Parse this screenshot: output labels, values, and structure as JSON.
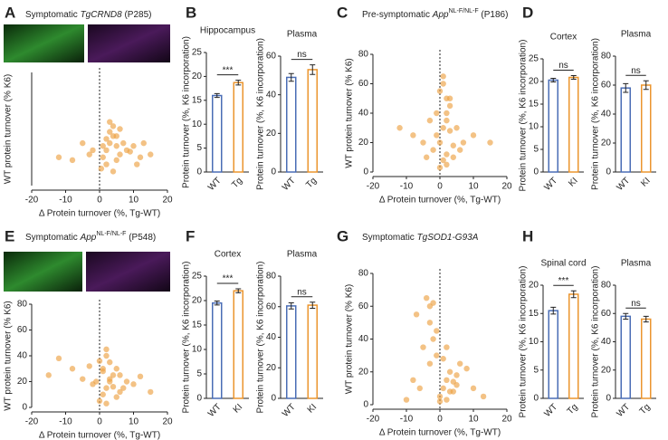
{
  "chart_data": [
    {
      "type": "scatter",
      "panel": "A",
      "title": [
        {
          "text": "Symptomatic "
        },
        {
          "text": "TgCRND8",
          "style": "italic"
        },
        {
          "text": " (P285)"
        }
      ],
      "xlabel": "Δ Protein turnover (%, Tg-WT)",
      "ylabel": "WT protein turnover (% K6)",
      "color": "#eda144",
      "reference_x": 0,
      "xlim": [
        -20,
        20
      ],
      "xticks": [
        -20,
        -10,
        0,
        10,
        20
      ],
      "ylim": [
        0,
        80
      ],
      "x": [
        1,
        2,
        3,
        4,
        5,
        6,
        2,
        3,
        4,
        5,
        7,
        8,
        10,
        12,
        15,
        -2,
        -5,
        -8,
        -12,
        0.5,
        3,
        6,
        9,
        4,
        2,
        1,
        5,
        11,
        13,
        -3
      ],
      "y": [
        20,
        25,
        30,
        35,
        28,
        22,
        15,
        38,
        42,
        18,
        30,
        25,
        28,
        20,
        22,
        25,
        30,
        18,
        20,
        12,
        45,
        40,
        24,
        10,
        33,
        28,
        35,
        15,
        30,
        22
      ]
    },
    {
      "type": "bar",
      "panel": "B",
      "title": "Hippocampus",
      "ylabel": "Protein turnover (%, K6 incorporation)",
      "categories": [
        "WT",
        "Tg"
      ],
      "values": [
        16,
        18.7
      ],
      "errors": [
        0.4,
        0.5
      ],
      "colors": [
        "#4a6db5",
        "#eb952e"
      ],
      "significance": "***",
      "ylim": [
        0,
        25
      ],
      "yticks": [
        0,
        5,
        10,
        15,
        20,
        25
      ]
    },
    {
      "type": "bar",
      "title": "Plasma",
      "ylabel": "Protein turnover (%, K6 incorporation)",
      "categories": [
        "WT",
        "Tg"
      ],
      "values": [
        49,
        53
      ],
      "errors": [
        2,
        2.5
      ],
      "colors": [
        "#4a6db5",
        "#eb952e"
      ],
      "significance": "ns",
      "ylim": [
        0,
        60
      ],
      "yticks": [
        0,
        20,
        40,
        60
      ]
    },
    {
      "type": "scatter",
      "panel": "C",
      "title": [
        {
          "text": "Pre-symptomatic "
        },
        {
          "text": "App",
          "style": "italic"
        },
        {
          "text": "NL-F/NL-F",
          "style": "sup"
        },
        {
          "text": " (P186)"
        }
      ],
      "xlabel": "Δ Protein turnover (%, Tg-WT)",
      "ylabel": "WT protein turnover (% K6)",
      "color": "#eda144",
      "reference_x": 0,
      "xlim": [
        -20,
        20
      ],
      "xticks": [
        -20,
        -10,
        0,
        10,
        20
      ],
      "ylim": [
        0,
        80
      ],
      "yticks": [
        0,
        20,
        40,
        60,
        80
      ],
      "x": [
        0,
        1,
        2,
        3,
        4,
        -1,
        -2,
        -3,
        -5,
        -8,
        -12,
        1,
        2,
        3,
        5,
        7,
        10,
        0,
        1,
        2,
        -1,
        4,
        6,
        -4,
        2,
        3,
        15,
        1,
        0,
        2
      ],
      "y": [
        20,
        30,
        40,
        50,
        10,
        25,
        15,
        35,
        20,
        25,
        30,
        60,
        5,
        45,
        30,
        20,
        25,
        55,
        65,
        12,
        40,
        18,
        15,
        10,
        35,
        28,
        20,
        8,
        3,
        50
      ]
    },
    {
      "type": "bar",
      "panel": "D",
      "title": "Cortex",
      "ylabel": "Protein turnover (%, K6 incorporation)",
      "categories": [
        "WT",
        "KI"
      ],
      "values": [
        20.3,
        20.9
      ],
      "errors": [
        0.4,
        0.4
      ],
      "colors": [
        "#4a6db5",
        "#eb952e"
      ],
      "significance": "ns",
      "ylim": [
        0,
        25
      ],
      "yticks": [
        0,
        5,
        10,
        15,
        20,
        25
      ]
    },
    {
      "type": "bar",
      "title": "Plasma",
      "ylabel": "Protein turnover (%, K6 incorporation)",
      "categories": [
        "WT",
        "KI"
      ],
      "values": [
        58,
        60
      ],
      "errors": [
        3,
        3
      ],
      "colors": [
        "#4a6db5",
        "#eb952e"
      ],
      "significance": "ns",
      "ylim": [
        0,
        80
      ],
      "yticks": [
        0,
        20,
        40,
        60,
        80
      ]
    },
    {
      "type": "scatter",
      "panel": "E",
      "title": [
        {
          "text": "Symptomatic "
        },
        {
          "text": "App",
          "style": "italic"
        },
        {
          "text": "NL-F/NL-F",
          "style": "sup"
        },
        {
          "text": " (P548)"
        }
      ],
      "xlabel": "Δ Protein turnover (%, Tg-WT)",
      "ylabel": "WT protein turnover (% K6)",
      "color": "#eda144",
      "reference_x": 0,
      "xlim": [
        -20,
        20
      ],
      "xticks": [
        -20,
        -10,
        0,
        10,
        20
      ],
      "ylim": [
        0,
        80
      ],
      "yticks": [
        0,
        20,
        40,
        60,
        80
      ],
      "x": [
        1,
        2,
        3,
        4,
        5,
        6,
        -2,
        -5,
        -8,
        -12,
        -15,
        2,
        3,
        8,
        10,
        15,
        0,
        1,
        4,
        -3,
        5,
        2,
        3,
        7,
        -1,
        1,
        2,
        6,
        12,
        0
      ],
      "y": [
        10,
        15,
        20,
        25,
        30,
        12,
        18,
        22,
        30,
        38,
        25,
        40,
        35,
        20,
        18,
        12,
        5,
        28,
        16,
        32,
        8,
        45,
        22,
        15,
        20,
        30,
        3,
        25,
        24,
        36
      ]
    },
    {
      "type": "bar",
      "panel": "F",
      "title": "Cortex",
      "ylabel": "Protein turnover (%, K6 incorporation)",
      "categories": [
        "WT",
        "KI"
      ],
      "values": [
        19.5,
        22
      ],
      "errors": [
        0.4,
        0.4
      ],
      "colors": [
        "#4a6db5",
        "#eb952e"
      ],
      "significance": "***",
      "ylim": [
        0,
        25
      ],
      "yticks": [
        0,
        5,
        10,
        15,
        20,
        25
      ]
    },
    {
      "type": "bar",
      "title": "Plasma",
      "ylabel": "Protein turnover (%, K6 incorporation)",
      "categories": [
        "WT",
        "KI"
      ],
      "values": [
        60.5,
        61
      ],
      "errors": [
        2,
        2
      ],
      "colors": [
        "#4a6db5",
        "#eb952e"
      ],
      "significance": "ns",
      "ylim": [
        0,
        80
      ],
      "yticks": [
        0,
        20,
        40,
        60,
        80
      ]
    },
    {
      "type": "scatter",
      "panel": "G",
      "title": [
        {
          "text": "Symptomatic "
        },
        {
          "text": "TgSOD1-G93A",
          "style": "italic"
        }
      ],
      "xlabel": "Δ Protein turnover (%, Tg-WT)",
      "ylabel": "WT protein turnover (% K6)",
      "color": "#eda144",
      "reference_x": 0,
      "xlim": [
        -20,
        20
      ],
      "xticks": [
        -20,
        -10,
        0,
        10,
        20
      ],
      "ylim": [
        0,
        80
      ],
      "yticks": [
        0,
        20,
        40,
        60,
        80
      ],
      "x": [
        0,
        1,
        2,
        3,
        4,
        5,
        6,
        -1,
        -2,
        -3,
        -3,
        -4,
        -5,
        -6,
        -8,
        -10,
        2,
        3,
        5,
        8,
        10,
        13,
        1,
        -2,
        -1,
        4,
        -3,
        -7,
        2,
        0
      ],
      "y": [
        5,
        10,
        15,
        20,
        8,
        12,
        25,
        30,
        40,
        50,
        60,
        65,
        35,
        10,
        15,
        3,
        3,
        8,
        18,
        22,
        10,
        5,
        28,
        62,
        45,
        14,
        25,
        55,
        35,
        2
      ]
    },
    {
      "type": "bar",
      "panel": "H",
      "title": "Spinal cord",
      "ylabel": "Protein turnover (%, K6 incorporation)",
      "categories": [
        "WT",
        "Tg"
      ],
      "values": [
        15.5,
        18.4
      ],
      "errors": [
        0.6,
        0.6
      ],
      "colors": [
        "#4a6db5",
        "#eb952e"
      ],
      "significance": "***",
      "ylim": [
        0,
        20
      ],
      "yticks": [
        0,
        5,
        10,
        15,
        20
      ]
    },
    {
      "type": "bar",
      "title": "Plasma",
      "ylabel": "Protein turnover (%, K6 incorporation)",
      "categories": [
        "WT",
        "Tg"
      ],
      "values": [
        58,
        56
      ],
      "errors": [
        2,
        2
      ],
      "colors": [
        "#4a6db5",
        "#eb952e"
      ],
      "significance": "ns",
      "ylim": [
        0,
        80
      ],
      "yticks": [
        0,
        20,
        40,
        60,
        80
      ]
    }
  ]
}
